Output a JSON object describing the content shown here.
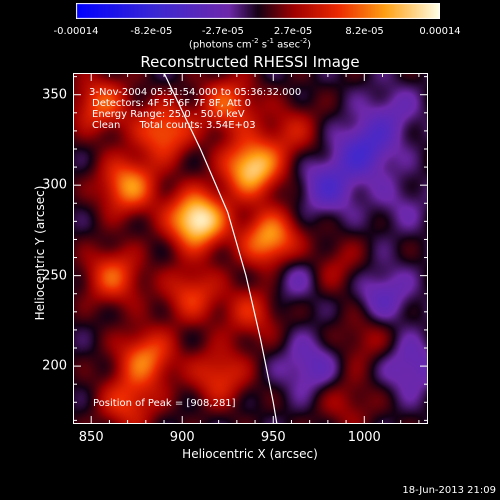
{
  "chart_data": {
    "type": "heatmap",
    "title": "Reconstructed RHESSI Image",
    "xlabel": "Heliocentric X (arcsec)",
    "ylabel": "Heliocentric Y (arcsec)",
    "xlim": [
      840,
      1035
    ],
    "ylim": [
      168,
      362
    ],
    "x_ticks": [
      850,
      900,
      950,
      1000
    ],
    "y_ticks": [
      200,
      250,
      300,
      350
    ],
    "colorbar": {
      "ticks": [
        "-0.00014",
        "-8.2e-05",
        "-2.7e-05",
        "2.7e-05",
        "8.2e-05",
        "0.00014"
      ],
      "tick_values": [
        -0.00014,
        -8.2e-05,
        -2.7e-05,
        2.7e-05,
        8.2e-05,
        0.00014
      ],
      "range": [
        -0.00014,
        0.00014
      ],
      "units_main": "(photons cm",
      "units_sup1": "-2",
      "units_mid": " s",
      "units_sup2": "-1",
      "units_end": " asec",
      "units_sup3": "-2",
      "units_close": ")"
    },
    "annotations": {
      "time_range": "3-Nov-2004 05:31:54.000 to 05:36:32.000",
      "detectors": "Detectors: 4F 5F 6F 7F 8F, Att 0",
      "energy": "Energy Range: 25.0 - 50.0 keV",
      "clean": "Clean      Total counts: 3.54E+03",
      "peak": "Position of Peak = [908,281]"
    },
    "sources": [
      {
        "x": 908,
        "y": 281,
        "value": 0.00014
      },
      {
        "x": 938,
        "y": 310,
        "value": 0.00012
      },
      {
        "x": 948,
        "y": 270,
        "value": 0.0001
      },
      {
        "x": 890,
        "y": 330,
        "value": 8e-05
      },
      {
        "x": 870,
        "y": 300,
        "value": 9e-05
      },
      {
        "x": 925,
        "y": 345,
        "value": 7e-05
      },
      {
        "x": 862,
        "y": 250,
        "value": 7e-05
      },
      {
        "x": 905,
        "y": 240,
        "value": 6e-05
      },
      {
        "x": 880,
        "y": 205,
        "value": 8e-05
      },
      {
        "x": 920,
        "y": 195,
        "value": 6e-05
      },
      {
        "x": 855,
        "y": 345,
        "value": 7e-05
      },
      {
        "x": 938,
        "y": 230,
        "value": 5e-05
      },
      {
        "x": 960,
        "y": 330,
        "value": 4e-05
      },
      {
        "x": 870,
        "y": 180,
        "value": 6e-05
      },
      {
        "x": 985,
        "y": 255,
        "value": 3e-05
      },
      {
        "x": 1000,
        "y": 215,
        "value": 3e-05
      },
      {
        "x": 990,
        "y": 180,
        "value": 3e-05
      },
      {
        "x": 1015,
        "y": 340,
        "value": -3e-05
      },
      {
        "x": 1020,
        "y": 290,
        "value": -2e-05
      },
      {
        "x": 980,
        "y": 300,
        "value": -5e-05
      },
      {
        "x": 1010,
        "y": 240,
        "value": -4e-05
      },
      {
        "x": 970,
        "y": 200,
        "value": -4e-05
      },
      {
        "x": 1000,
        "y": 320,
        "value": -6e-05
      },
      {
        "x": 960,
        "y": 250,
        "value": -3e-05
      },
      {
        "x": 1025,
        "y": 200,
        "value": -4e-05
      }
    ],
    "limb_curve": [
      [
        890,
        362
      ],
      [
        910,
        320
      ],
      [
        925,
        285
      ],
      [
        935,
        250
      ],
      [
        943,
        215
      ],
      [
        950,
        180
      ],
      [
        952,
        168
      ]
    ]
  },
  "footer": {
    "date": "18-Jun-2013 21:09"
  }
}
